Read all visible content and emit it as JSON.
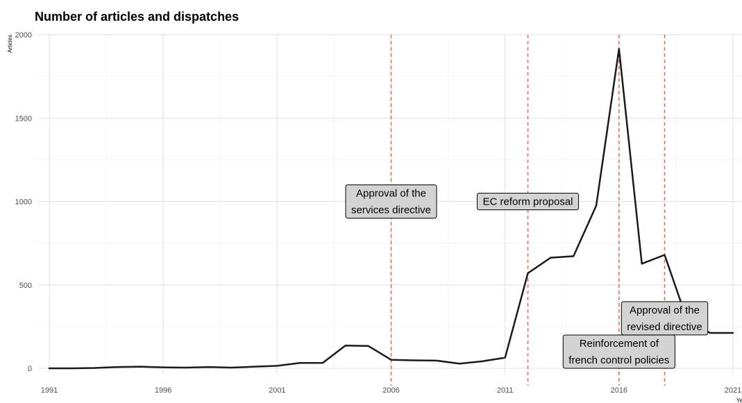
{
  "title": "Number of articles and dispatches",
  "colors": {
    "line": "#1a1a1a",
    "vline": "#f0624d",
    "grid_major": "#e0e0e0",
    "grid_minor": "#f0f0f0",
    "label_fill": "#d3d3d3",
    "label_border": "#000000"
  },
  "chart_data": {
    "type": "line",
    "title": "Number of articles and dispatches",
    "xlabel": "Year",
    "ylabel": "Articles",
    "xlim": [
      1991,
      2021
    ],
    "ylim": [
      0,
      2000
    ],
    "x_ticks": [
      1991,
      1996,
      2001,
      2006,
      2011,
      2016,
      2021
    ],
    "y_ticks": [
      0,
      500,
      1000,
      1500,
      2000
    ],
    "grid": true,
    "series": [
      {
        "x": [
          1991,
          1992,
          1993,
          1994,
          1995,
          1996,
          1997,
          1998,
          1999,
          2000,
          2001,
          2002,
          2003,
          2004,
          2005,
          2006,
          2007,
          2008,
          2009,
          2010,
          2011,
          2012,
          2013,
          2014,
          2015,
          2016,
          2017,
          2018,
          2019,
          2020,
          2021
        ],
        "values": [
          0,
          0,
          2,
          8,
          10,
          6,
          4,
          8,
          4,
          10,
          15,
          32,
          33,
          137,
          134,
          51,
          48,
          46,
          28,
          42,
          64,
          570,
          663,
          672,
          975,
          1915,
          627,
          680,
          285,
          212,
          212
        ]
      }
    ],
    "vlines": [
      2006,
      2012,
      2016,
      2018
    ],
    "annotations": [
      {
        "lines": [
          "Approval of the",
          "services directive"
        ],
        "x": 2006,
        "y": 1000
      },
      {
        "lines": [
          "EC reform proposal"
        ],
        "x": 2012,
        "y": 1000
      },
      {
        "lines": [
          "Approval of the",
          "revised directive"
        ],
        "x": 2018,
        "y": 300
      },
      {
        "lines": [
          "Reinforcement of",
          "french control policies"
        ],
        "x": 2016,
        "y": 100
      }
    ]
  }
}
